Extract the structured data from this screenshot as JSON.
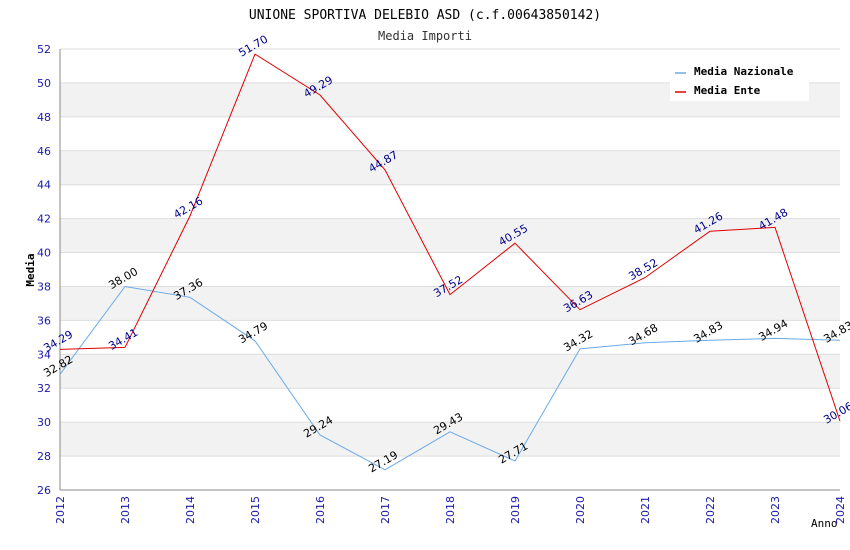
{
  "chart_data": {
    "type": "line",
    "title": "UNIONE SPORTIVA DELEBIO ASD (c.f.00643850142)",
    "subtitle": "Media Importi",
    "xlabel": "Anno",
    "ylabel": "Media",
    "ylim": [
      26,
      52
    ],
    "yticks": [
      "26",
      "28",
      "30",
      "32",
      "34",
      "36",
      "38",
      "40",
      "42",
      "44",
      "46",
      "48",
      "50",
      "52"
    ],
    "categories": [
      "2012",
      "2013",
      "2014",
      "2015",
      "2016",
      "2017",
      "2018",
      "2019",
      "2020",
      "2021",
      "2022",
      "2023",
      "2024"
    ],
    "grid": "horizontal alternating bands",
    "legend_position": "top-right",
    "series": [
      {
        "name": "Media Nazionale",
        "color": "#6aaae8",
        "label_color": "#000000",
        "values": [
          32.82,
          38.0,
          37.36,
          34.79,
          29.24,
          27.19,
          29.43,
          27.71,
          34.32,
          34.68,
          34.83,
          34.94,
          34.83
        ],
        "labels": [
          "32.82",
          "38.00",
          "37.36",
          "34.79",
          "29.24",
          "27.19",
          "29.43",
          "27.71",
          "34.32",
          "34.68",
          "34.83",
          "34.94",
          "34.83"
        ]
      },
      {
        "name": "Media Ente",
        "color": "#e00000",
        "label_color": "#00008b",
        "values": [
          34.29,
          34.41,
          42.16,
          51.7,
          49.29,
          44.87,
          37.52,
          40.55,
          36.63,
          38.52,
          41.26,
          41.48,
          30.06
        ],
        "labels": [
          "34.29",
          "34.41",
          "42.16",
          "51.70",
          "49.29",
          "44.87",
          "37.52",
          "40.55",
          "36.63",
          "38.52",
          "41.26",
          "41.48",
          "30.06"
        ]
      }
    ]
  }
}
